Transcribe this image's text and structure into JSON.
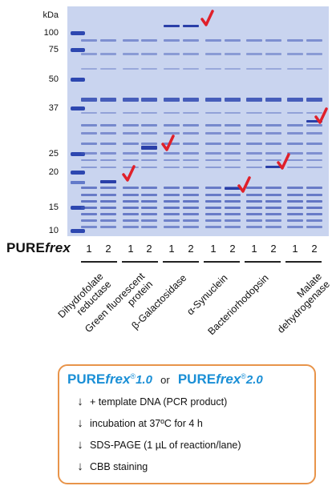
{
  "gel": {
    "kda_unit": "kDa",
    "markers": [
      "100",
      "75",
      "50",
      "37",
      "25",
      "20",
      "15",
      "10"
    ],
    "marker_kda": [
      100,
      75,
      50,
      37,
      25,
      20,
      15,
      10
    ],
    "colors": {
      "gel_background": "#c9d4ef",
      "band": "#3f56b6",
      "arrow": "#e0202a"
    }
  },
  "brand": {
    "pure": "PURE",
    "frex": "frex"
  },
  "lanes": {
    "numbers": [
      "1",
      "2",
      "1",
      "2",
      "1",
      "2",
      "1",
      "2",
      "1",
      "2",
      "1",
      "2"
    ]
  },
  "proteins": [
    {
      "line1": "Dihydrofolate",
      "line2": "reductase"
    },
    {
      "line1": "Green fluorescent",
      "line2": "protein"
    },
    {
      "line1": "β-Galactosidase",
      "line2": ""
    },
    {
      "line1": "α-Synuclein",
      "line2": ""
    },
    {
      "line1": "Bacteriorhodopsin",
      "line2": ""
    },
    {
      "line1": "Malate",
      "line2": "dehydrogenase"
    }
  ],
  "protocol": {
    "product1": {
      "pure": "PURE",
      "frex": "frex",
      "reg": "®",
      "version": "1.0"
    },
    "or": "or",
    "product2": {
      "pure": "PURE",
      "frex": "frex",
      "reg": "®",
      "version": "2.0"
    },
    "steps": [
      "+ template DNA (PCR product)",
      "incubation at 37ºC for 4 h",
      "SDS-PAGE (1 µL of reaction/lane)",
      "CBB staining"
    ],
    "arrow_symbol": "↓",
    "border_color": "#e8944a"
  }
}
